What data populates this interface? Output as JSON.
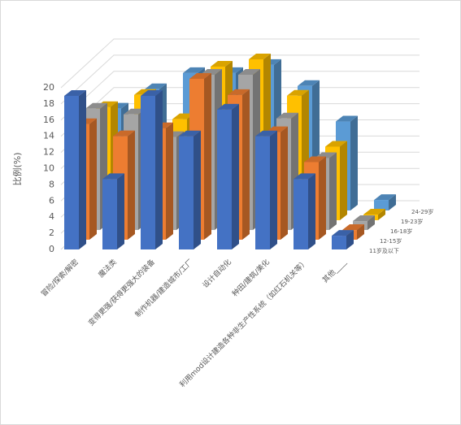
{
  "chart_data": {
    "type": "bar3d",
    "y_label": "比例(%)",
    "categories": [
      "冒险/探索/解密",
      "魔法类",
      "变得更强/获得更强大的装备",
      "制作机器/建造城市/工厂",
      "设计自动化",
      "种田/建筑/美化",
      "利用mod设计建造各种非生产性系统（如红石机关等）",
      "其他____"
    ],
    "series": [
      {
        "name": "11岁及以下",
        "color": "#4472c4",
        "values": [
          19,
          8.7,
          19,
          14,
          17.3,
          14,
          8.7,
          1.7
        ]
      },
      {
        "name": "12-15岁",
        "color": "#ed7d31",
        "values": [
          14.3,
          12.8,
          13.8,
          19.9,
          17.9,
          13.3,
          9.6,
          1.2
        ]
      },
      {
        "name": "16-18岁",
        "color": "#a5a5a5",
        "values": [
          15,
          14.3,
          11.5,
          19.2,
          19.2,
          13.8,
          8.9,
          1.1
        ]
      },
      {
        "name": "19-23岁",
        "color": "#ffc000",
        "values": [
          14,
          15.5,
          12.5,
          19,
          19.9,
          15.4,
          9.1,
          0.7
        ]
      },
      {
        "name": "24-29岁",
        "color": "#5b9bd5",
        "values": [
          12.6,
          15,
          17,
          17,
          18,
          15.4,
          11,
          1.3
        ]
      }
    ],
    "ylim": [
      0,
      20
    ],
    "yticks": [
      0,
      2,
      4,
      6,
      8,
      10,
      12,
      14,
      16,
      18,
      20
    ],
    "grid": true
  }
}
